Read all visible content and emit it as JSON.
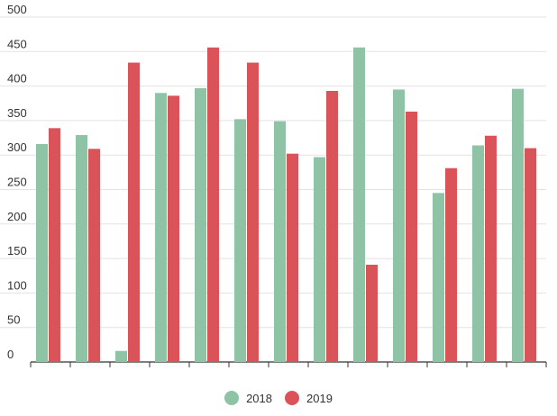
{
  "chart_data": {
    "type": "bar",
    "ylim": [
      0,
      500
    ],
    "yticks": [
      0,
      50,
      100,
      150,
      200,
      250,
      300,
      350,
      400,
      450,
      500
    ],
    "grid": true,
    "legend_position": "bottom",
    "categories": [
      "",
      "",
      "",
      "",
      "",
      "",
      "",
      "",
      "",
      "",
      "",
      "",
      ""
    ],
    "series": [
      {
        "name": "2018",
        "color": "#8fc3a5",
        "values": [
          316,
          329,
          16,
          390,
          397,
          352,
          349,
          297,
          456,
          395,
          245,
          314,
          396
        ]
      },
      {
        "name": "2019",
        "color": "#da5359",
        "values": [
          339,
          309,
          434,
          386,
          456,
          434,
          302,
          393,
          141,
          363,
          281,
          328,
          310
        ]
      }
    ]
  }
}
